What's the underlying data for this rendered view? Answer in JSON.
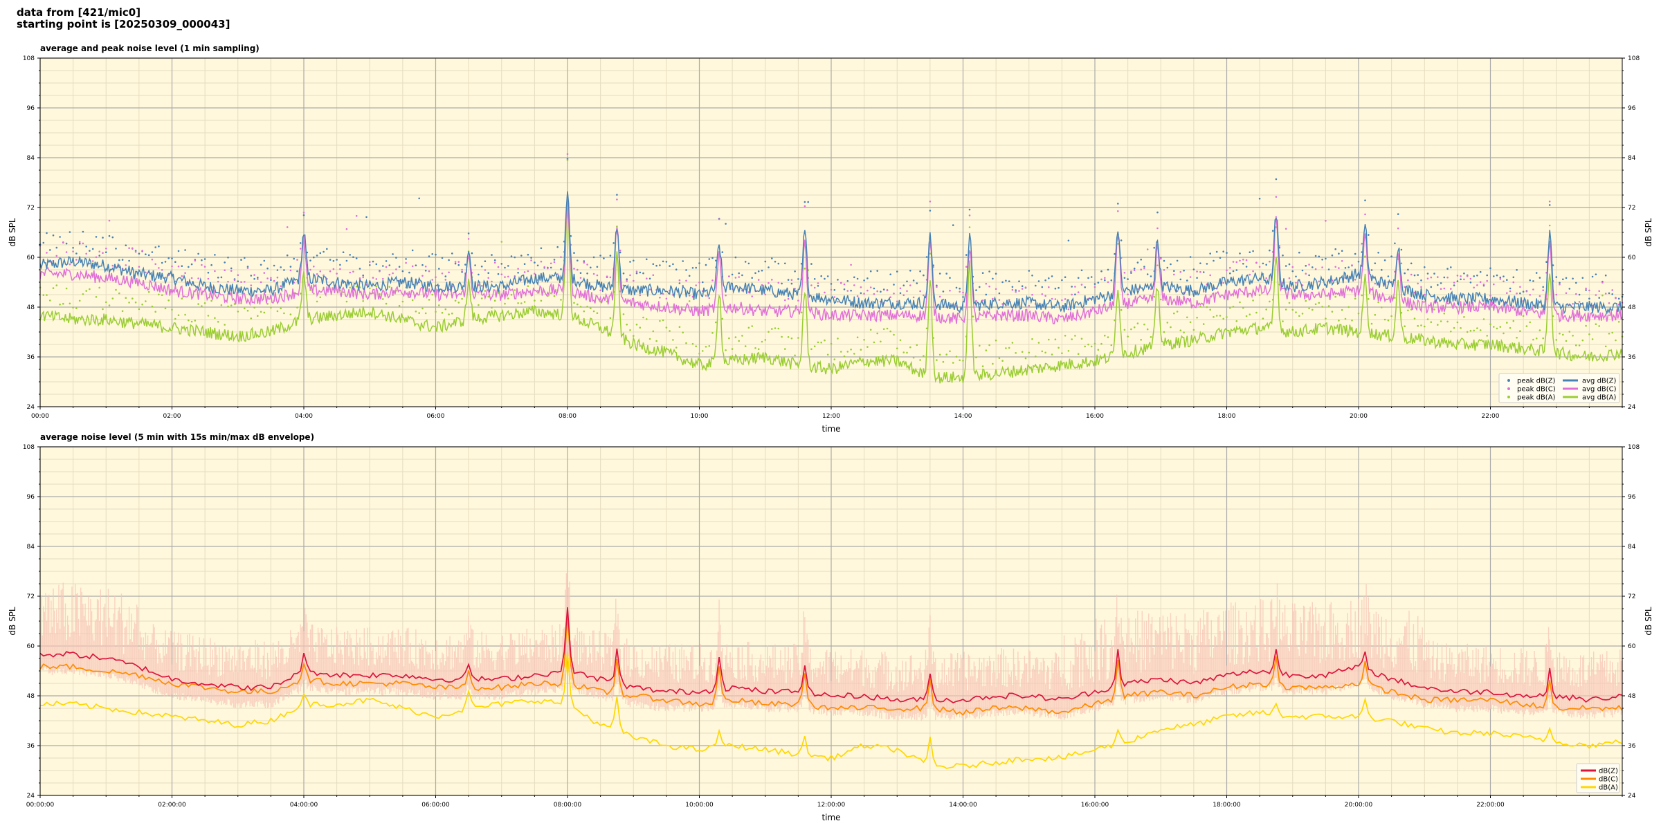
{
  "header": {
    "line1": "data from [421/mic0]",
    "line2": "starting point is [20250309_000043]"
  },
  "colors": {
    "plot_bg": "#fff8dc",
    "grid_major": "#aaaaaa",
    "grid_minor": "#e6dcc0",
    "avgZ": "#4682b4",
    "avgC": "#e070d8",
    "avgA": "#9acd32",
    "dbZ": "#dc143c",
    "dbC": "#ff8c00",
    "dbA": "#ffd700",
    "envelope": "#f7c6b8"
  },
  "chart_data": [
    {
      "type": "scatter",
      "title": "average and peak noise level (1 min sampling)",
      "xlabel": "time",
      "ylabel": "dB SPL",
      "ylabel_right": "dB SPL",
      "ylim": [
        24,
        108
      ],
      "xlim": [
        0,
        24
      ],
      "yticks": [
        24,
        36,
        48,
        60,
        72,
        84,
        96,
        108
      ],
      "xtick_labels": [
        "00:00",
        "02:00",
        "04:00",
        "06:00",
        "08:00",
        "10:00",
        "12:00",
        "14:00",
        "16:00",
        "18:00",
        "20:00",
        "22:00"
      ],
      "grid": true,
      "legend_placement": "lower-right",
      "legend": [
        "peak dB(Z)",
        "peak dB(C)",
        "peak dB(A)",
        "avg dB(Z)",
        "avg dB(C)",
        "avg dB(A)"
      ],
      "x": [
        0.0,
        0.5,
        1.0,
        1.5,
        2.0,
        2.5,
        3.0,
        3.5,
        4.0,
        4.5,
        5.0,
        5.5,
        6.0,
        6.5,
        7.0,
        7.5,
        8.0,
        8.5,
        9.0,
        9.5,
        10.0,
        10.5,
        11.0,
        11.5,
        12.0,
        12.5,
        13.0,
        13.5,
        14.0,
        14.5,
        15.0,
        15.5,
        16.0,
        16.5,
        17.0,
        17.5,
        18.0,
        18.5,
        19.0,
        19.5,
        20.0,
        20.5,
        21.0,
        21.5,
        22.0,
        22.5,
        23.0,
        23.5,
        24.0
      ],
      "series": [
        {
          "name": "avg dB(Z)",
          "values": [
            58,
            59,
            58,
            56,
            55,
            53,
            52,
            52,
            55,
            54,
            53,
            54,
            53,
            53,
            53,
            55,
            55,
            53,
            52,
            52,
            51,
            53,
            52,
            51,
            50,
            49,
            49,
            49,
            48,
            49,
            49,
            48,
            50,
            52,
            53,
            52,
            54,
            55,
            53,
            54,
            56,
            53,
            51,
            50,
            50,
            49,
            48,
            48,
            48
          ]
        },
        {
          "name": "avg dB(C)",
          "values": [
            56,
            56,
            55,
            54,
            52,
            51,
            50,
            50,
            52,
            52,
            51,
            52,
            51,
            51,
            51,
            52,
            52,
            50,
            49,
            48,
            47,
            48,
            47,
            47,
            46,
            46,
            46,
            46,
            45,
            46,
            46,
            45,
            47,
            49,
            50,
            49,
            51,
            52,
            51,
            51,
            52,
            50,
            48,
            48,
            48,
            47,
            46,
            46,
            46
          ]
        },
        {
          "name": "avg dB(A)",
          "values": [
            46,
            45,
            45,
            44,
            43,
            42,
            41,
            42,
            45,
            46,
            47,
            45,
            43,
            45,
            46,
            47,
            46,
            43,
            39,
            37,
            34,
            35,
            36,
            34,
            33,
            35,
            35,
            31,
            31,
            32,
            33,
            34,
            35,
            37,
            39,
            40,
            42,
            43,
            42,
            43,
            42,
            41,
            40,
            39,
            39,
            38,
            37,
            36,
            37
          ]
        }
      ],
      "peak_series": [
        {
          "name": "peak dB(Z)",
          "offset_from": "avg dB(Z)",
          "offset": 3
        },
        {
          "name": "peak dB(C)",
          "offset_from": "avg dB(C)",
          "offset": 3
        },
        {
          "name": "peak dB(A)",
          "offset_from": "avg dB(A)",
          "offset": 3
        }
      ],
      "spikes": [
        {
          "x": 4.0,
          "z": 66,
          "c": 64,
          "a": 56
        },
        {
          "x": 6.5,
          "z": 62,
          "c": 60,
          "a": 54
        },
        {
          "x": 8.0,
          "z": 75,
          "c": 74,
          "a": 72
        },
        {
          "x": 8.75,
          "z": 68,
          "c": 67,
          "a": 60
        },
        {
          "x": 10.3,
          "z": 63,
          "c": 60,
          "a": 52
        },
        {
          "x": 11.6,
          "z": 66,
          "c": 63,
          "a": 52
        },
        {
          "x": 13.5,
          "z": 65,
          "c": 63,
          "a": 55
        },
        {
          "x": 14.1,
          "z": 65,
          "c": 63,
          "a": 58
        },
        {
          "x": 16.35,
          "z": 67,
          "c": 65,
          "a": 53
        },
        {
          "x": 16.95,
          "z": 64,
          "c": 62,
          "a": 53
        },
        {
          "x": 18.75,
          "z": 70,
          "c": 69,
          "a": 60
        },
        {
          "x": 20.1,
          "z": 67,
          "c": 65,
          "a": 55
        },
        {
          "x": 20.6,
          "z": 63,
          "c": 61,
          "a": 54
        },
        {
          "x": 22.9,
          "z": 66,
          "c": 64,
          "a": 57
        }
      ]
    },
    {
      "type": "line",
      "title": "average noise level (5 min with 15s min/max dB envelope)",
      "xlabel": "time",
      "ylabel": "dB SPL",
      "ylabel_right": "dB SPL",
      "ylim": [
        24,
        108
      ],
      "xlim": [
        0,
        24
      ],
      "yticks": [
        24,
        36,
        48,
        60,
        72,
        84,
        96,
        108
      ],
      "xtick_labels": [
        "00:00:00",
        "02:00:00",
        "04:00:00",
        "06:00:00",
        "08:00:00",
        "10:00:00",
        "12:00:00",
        "14:00:00",
        "16:00:00",
        "18:00:00",
        "20:00:00",
        "22:00:00"
      ],
      "grid": true,
      "legend_placement": "lower-right",
      "legend": [
        "dB(Z)",
        "dB(C)",
        "dB(A)"
      ],
      "x": [
        0.0,
        0.5,
        1.0,
        1.5,
        2.0,
        2.5,
        3.0,
        3.5,
        4.0,
        4.5,
        5.0,
        5.5,
        6.0,
        6.5,
        7.0,
        7.5,
        8.0,
        8.5,
        9.0,
        9.5,
        10.0,
        10.5,
        11.0,
        11.5,
        12.0,
        12.5,
        13.0,
        13.5,
        14.0,
        14.5,
        15.0,
        15.5,
        16.0,
        16.5,
        17.0,
        17.5,
        18.0,
        18.5,
        19.0,
        19.5,
        20.0,
        20.5,
        21.0,
        21.5,
        22.0,
        22.5,
        23.0,
        23.5,
        24.0
      ],
      "series": [
        {
          "name": "dB(Z)",
          "values": [
            58,
            58,
            57,
            55,
            52,
            51,
            50,
            50,
            54,
            53,
            53,
            53,
            52,
            52,
            52,
            53,
            54,
            52,
            50,
            49,
            49,
            50,
            49,
            49,
            48,
            48,
            47,
            47,
            47,
            48,
            48,
            47,
            49,
            51,
            52,
            51,
            53,
            54,
            53,
            53,
            55,
            52,
            50,
            49,
            49,
            48,
            48,
            47,
            48
          ]
        },
        {
          "name": "dB(C)",
          "values": [
            55,
            55,
            54,
            53,
            51,
            50,
            49,
            49,
            52,
            51,
            51,
            51,
            50,
            50,
            50,
            51,
            51,
            49,
            48,
            47,
            46,
            47,
            46,
            46,
            45,
            45,
            45,
            45,
            44,
            45,
            45,
            44,
            46,
            48,
            49,
            48,
            50,
            51,
            50,
            50,
            51,
            49,
            47,
            47,
            47,
            46,
            45,
            45,
            45
          ]
        },
        {
          "name": "dB(A)",
          "values": [
            46,
            46,
            45,
            44,
            43,
            42,
            41,
            42,
            46,
            46,
            47,
            45,
            43,
            45,
            46,
            47,
            46,
            41,
            38,
            36,
            35,
            36,
            35,
            34,
            33,
            36,
            35,
            31,
            31,
            32,
            33,
            33,
            35,
            37,
            40,
            41,
            43,
            44,
            43,
            43,
            43,
            42,
            40,
            39,
            39,
            38,
            37,
            36,
            37
          ]
        }
      ],
      "envelope": {
        "upper_offset": 12,
        "lower_offset": -3
      },
      "spikes": [
        {
          "x": 4.0,
          "z": 58,
          "c": 56,
          "a": 48
        },
        {
          "x": 6.5,
          "z": 56,
          "c": 54,
          "a": 49
        },
        {
          "x": 8.0,
          "z": 70,
          "c": 68,
          "a": 58
        },
        {
          "x": 8.75,
          "z": 59,
          "c": 57,
          "a": 48
        },
        {
          "x": 10.3,
          "z": 58,
          "c": 55,
          "a": 40
        },
        {
          "x": 11.6,
          "z": 56,
          "c": 54,
          "a": 38
        },
        {
          "x": 13.5,
          "z": 54,
          "c": 52,
          "a": 38
        },
        {
          "x": 16.35,
          "z": 59,
          "c": 57,
          "a": 40
        },
        {
          "x": 18.75,
          "z": 59,
          "c": 57,
          "a": 46
        },
        {
          "x": 20.1,
          "z": 58,
          "c": 56,
          "a": 47
        },
        {
          "x": 22.9,
          "z": 54,
          "c": 52,
          "a": 40
        }
      ]
    }
  ]
}
